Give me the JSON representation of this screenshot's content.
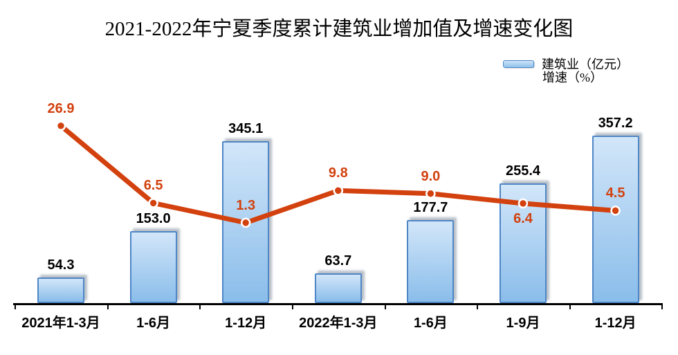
{
  "chart_data": {
    "type": "bar+line",
    "title": "2021-2022年宁夏季度累计建筑业增加值及增速变化图",
    "categories": [
      "2021年1-3月",
      "1-6月",
      "1-12月",
      "2022年1-3月",
      "1-6月",
      "1-9月",
      "1-12月"
    ],
    "series": [
      {
        "name": "建筑业（亿元）",
        "type": "bar",
        "values": [
          54.3,
          153.0,
          345.1,
          63.7,
          177.7,
          255.4,
          357.2
        ],
        "labels": [
          "54.3",
          "153.0",
          "345.1",
          "63.7",
          "177.7",
          "255.4",
          "357.2"
        ]
      },
      {
        "name": "增速（%）",
        "type": "line",
        "values": [
          26.9,
          6.5,
          1.3,
          9.8,
          9.0,
          6.4,
          4.5
        ],
        "labels": [
          "26.9",
          "6.5",
          "1.3",
          "9.8",
          "9.0",
          "6.4",
          "4.5"
        ],
        "label_positions": [
          "above",
          "above",
          "above",
          "above",
          "above",
          "below",
          "above"
        ]
      }
    ],
    "colors": {
      "bar_fill_top": "#d2e6f9",
      "bar_fill_bottom": "#8abdea",
      "bar_border": "#4e86c6",
      "line": "#d2410e",
      "text": "#000000",
      "axis": "#000000"
    },
    "legend_position": "top-right",
    "grid": false,
    "value_axis_labels_visible": false,
    "data_labels_visible": true
  }
}
